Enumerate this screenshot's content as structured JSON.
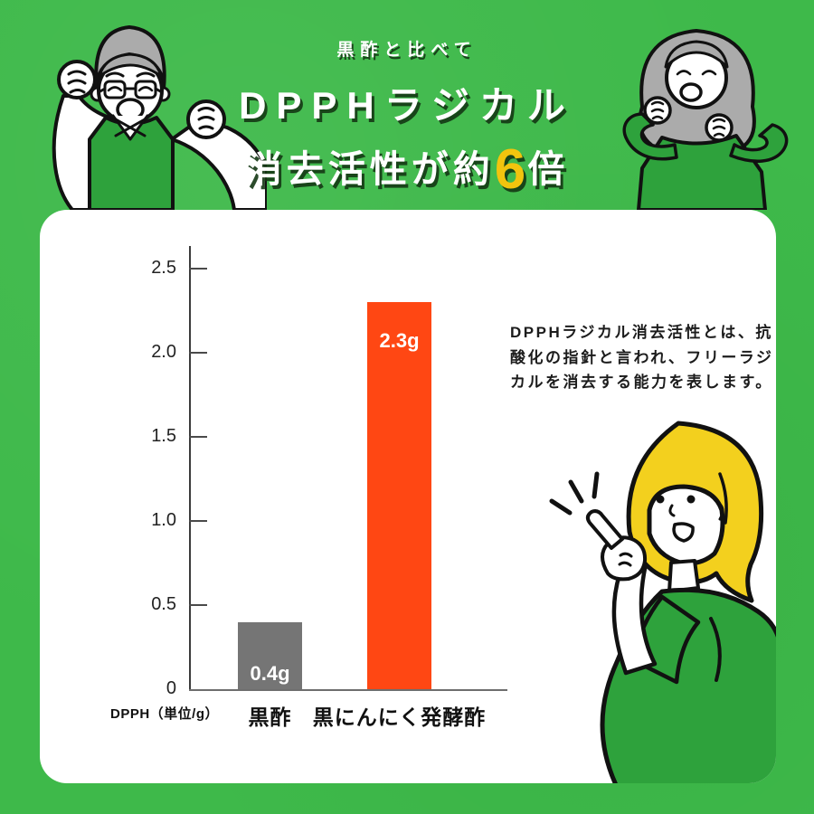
{
  "colors": {
    "background": "#3eb94a",
    "card": "#ffffff",
    "accent_yellow": "#f2c40e",
    "bar_gray": "#757575",
    "bar_orange": "#ff4713",
    "clothing_green": "#2ea23c",
    "hair_gray": "#ababab",
    "hair_blonde": "#f3d01e",
    "outline": "#111111"
  },
  "header": {
    "subtitle": "黒酢と比べて",
    "title_line1": "DPPHラジカル",
    "title_line2_pre": "消去活性が約",
    "title_big_number": "6",
    "title_line2_post": "倍"
  },
  "chart_data": {
    "type": "bar",
    "title": "",
    "categories": [
      "黒酢",
      "黒にんにく発酵酢"
    ],
    "values": [
      0.4,
      2.3
    ],
    "bar_labels": [
      "0.4g",
      "2.3g"
    ],
    "bar_colors": [
      "#757575",
      "#ff4713"
    ],
    "unit_label": "DPPH（単位/g）",
    "yticks": [
      "0",
      "0.5",
      "1.0",
      "1.5",
      "2.0",
      "2.5"
    ],
    "ytick_values": [
      0,
      0.5,
      1.0,
      1.5,
      2.0,
      2.5
    ],
    "ylim": [
      0,
      2.65
    ],
    "grid": false,
    "legend": null
  },
  "description": {
    "text": "DPPHラジカル消去活性とは、抗酸化の指針と言われ、フリーラジカルを消去する能力を表します。"
  },
  "illustrations": {
    "top_left": "elderly-man-cheering",
    "top_right": "elderly-woman-cheering",
    "in_card": "young-woman-pointing"
  }
}
